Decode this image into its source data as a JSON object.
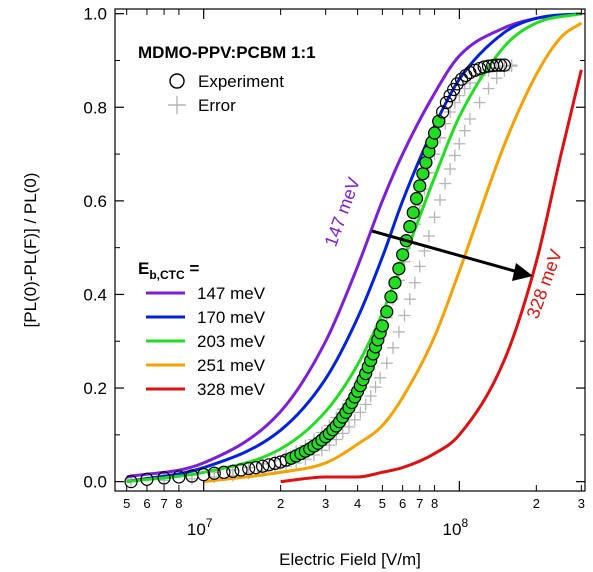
{
  "chart_data": {
    "type": "line",
    "xlabel": "Electric Field [V/m]",
    "ylabel": "[PL(0)-PL(F)] / PL(0)",
    "x_scale": "log",
    "xlim": [
      4500000,
      310000000
    ],
    "ylim": [
      -0.02,
      1.01
    ],
    "y_ticks": [
      "0.0",
      "0.2",
      "0.4",
      "0.6",
      "0.8",
      "1.0"
    ],
    "x_major_ticks": [
      {
        "value": 10000000,
        "base": "10",
        "exp": "7"
      },
      {
        "value": 100000000,
        "base": "10",
        "exp": "8"
      }
    ],
    "x_minor_labels": [
      {
        "value": 5000000,
        "label": "5"
      },
      {
        "value": 6000000,
        "label": "6"
      },
      {
        "value": 7000000,
        "label": "7"
      },
      {
        "value": 8000000,
        "label": "8"
      },
      {
        "value": 20000000,
        "label": "2"
      },
      {
        "value": 30000000,
        "label": "3"
      },
      {
        "value": 40000000,
        "label": "4"
      },
      {
        "value": 50000000,
        "label": "5"
      },
      {
        "value": 60000000,
        "label": "6"
      },
      {
        "value": 70000000,
        "label": "7"
      },
      {
        "value": 80000000,
        "label": "8"
      },
      {
        "value": 200000000,
        "label": "2"
      },
      {
        "value": 300000000,
        "label": "3"
      }
    ],
    "sample_label": "MDMO-PPV:PCBM 1:1",
    "legend_experiment": "Experiment",
    "legend_error": "Error",
    "eb_label_main": "E",
    "eb_label_sub": "b,CTC",
    "eb_label_eq": " =",
    "legend_placement": "top-left",
    "series": [
      {
        "name": "147 meV",
        "color": "#7b1fd8",
        "x": [
          5000000,
          10000000,
          20000000,
          30000000,
          40000000,
          50000000,
          60000000,
          80000000,
          100000000,
          150000000,
          200000000,
          300000000
        ],
        "y": [
          0.01,
          0.04,
          0.15,
          0.3,
          0.46,
          0.6,
          0.7,
          0.83,
          0.91,
          0.97,
          0.99,
          1.0
        ]
      },
      {
        "name": "170 meV",
        "color": "#0022dd",
        "x": [
          5000000,
          10000000,
          20000000,
          30000000,
          40000000,
          50000000,
          60000000,
          80000000,
          100000000,
          150000000,
          200000000,
          300000000
        ],
        "y": [
          0.0,
          0.03,
          0.11,
          0.22,
          0.35,
          0.48,
          0.6,
          0.76,
          0.86,
          0.96,
          0.99,
          1.0
        ]
      },
      {
        "name": "203 meV",
        "color": "#22dd22",
        "x": [
          5000000,
          10000000,
          20000000,
          30000000,
          40000000,
          50000000,
          60000000,
          80000000,
          100000000,
          150000000,
          200000000,
          300000000
        ],
        "y": [
          0.0,
          0.02,
          0.07,
          0.15,
          0.25,
          0.36,
          0.47,
          0.65,
          0.78,
          0.93,
          0.98,
          1.0
        ]
      },
      {
        "name": "251 meV",
        "color": "#f5a200",
        "x": [
          10000000,
          20000000,
          30000000,
          40000000,
          50000000,
          60000000,
          80000000,
          100000000,
          150000000,
          200000000,
          250000000,
          300000000
        ],
        "y": [
          0.0,
          0.02,
          0.04,
          0.08,
          0.12,
          0.18,
          0.31,
          0.45,
          0.72,
          0.87,
          0.95,
          0.98
        ]
      },
      {
        "name": "328 meV",
        "color": "#dd1111",
        "x": [
          20000000,
          30000000,
          40000000,
          50000000,
          60000000,
          80000000,
          100000000,
          150000000,
          200000000,
          250000000,
          300000000
        ],
        "y": [
          0.0,
          0.01,
          0.01,
          0.02,
          0.03,
          0.06,
          0.1,
          0.26,
          0.47,
          0.7,
          0.88
        ]
      }
    ],
    "experiment": {
      "x": [
        5200000,
        6000000,
        7000000,
        8000000,
        9000000,
        10000000,
        11000000,
        12000000,
        13000000,
        14000000,
        15000000,
        16000000,
        17000000,
        18000000,
        19000000,
        20000000,
        21000000,
        22000000,
        23000000,
        24000000,
        25000000,
        26000000,
        27000000,
        28000000,
        29000000,
        30000000,
        31000000,
        32000000,
        33000000,
        34000000,
        35000000,
        36000000,
        37000000,
        38000000,
        39000000,
        40000000,
        41000000,
        42000000,
        43000000,
        44000000,
        45000000,
        46000000,
        47000000,
        48000000,
        49000000,
        50000000,
        52000000,
        54000000,
        56000000,
        58000000,
        60000000,
        62000000,
        64000000,
        66000000,
        68000000,
        70000000,
        72000000,
        74000000,
        76000000,
        78000000,
        80000000,
        83000000,
        86000000,
        89000000,
        92000000,
        95000000,
        98000000,
        102000000,
        106000000,
        110000000,
        115000000,
        120000000,
        125000000,
        130000000,
        135000000,
        140000000,
        145000000,
        150000000
      ],
      "y": [
        0.0,
        0.005,
        0.008,
        0.01,
        0.012,
        0.015,
        0.018,
        0.02,
        0.022,
        0.025,
        0.028,
        0.03,
        0.033,
        0.036,
        0.039,
        0.042,
        0.046,
        0.05,
        0.055,
        0.06,
        0.065,
        0.07,
        0.076,
        0.082,
        0.089,
        0.096,
        0.103,
        0.111,
        0.119,
        0.128,
        0.138,
        0.148,
        0.158,
        0.169,
        0.181,
        0.193,
        0.205,
        0.218,
        0.231,
        0.245,
        0.259,
        0.273,
        0.288,
        0.303,
        0.318,
        0.333,
        0.363,
        0.395,
        0.425,
        0.455,
        0.485,
        0.515,
        0.545,
        0.575,
        0.605,
        0.632,
        0.658,
        0.682,
        0.705,
        0.725,
        0.745,
        0.77,
        0.79,
        0.81,
        0.825,
        0.838,
        0.85,
        0.86,
        0.868,
        0.874,
        0.879,
        0.883,
        0.886,
        0.888,
        0.889,
        0.89,
        0.89,
        0.89
      ]
    },
    "error": {
      "x": [
        5200000,
        7000000,
        9000000,
        11000000,
        13000000,
        15000000,
        17000000,
        19000000,
        21000000,
        23000000,
        25000000,
        27000000,
        29000000,
        31000000,
        33000000,
        35000000,
        37000000,
        39000000,
        41000000,
        43000000,
        45000000,
        47000000,
        49000000,
        52000000,
        55000000,
        58000000,
        61000000,
        64000000,
        67000000,
        70000000,
        73000000,
        76000000,
        80000000,
        84000000,
        88000000,
        92000000,
        96000000,
        100000000,
        105000000,
        110000000,
        120000000,
        130000000,
        140000000,
        150000000,
        160000000
      ],
      "y1": [
        0.005,
        0.009,
        0.014,
        0.02,
        0.025,
        0.03,
        0.038,
        0.046,
        0.055,
        0.065,
        0.077,
        0.09,
        0.105,
        0.12,
        0.137,
        0.155,
        0.174,
        0.195,
        0.217,
        0.24,
        0.263,
        0.287,
        0.312,
        0.35,
        0.39,
        0.43,
        0.47,
        0.51,
        0.55,
        0.59,
        0.625,
        0.66,
        0.7,
        0.735,
        0.765,
        0.79,
        0.81,
        0.825,
        0.84,
        0.852,
        0.868,
        0.878,
        0.884,
        0.888,
        0.89
      ],
      "y2": [
        0.0,
        0.003,
        0.006,
        0.01,
        0.013,
        0.018,
        0.022,
        0.027,
        0.033,
        0.04,
        0.048,
        0.057,
        0.067,
        0.078,
        0.09,
        0.103,
        0.117,
        0.132,
        0.148,
        0.165,
        0.183,
        0.202,
        0.222,
        0.253,
        0.286,
        0.32,
        0.355,
        0.39,
        0.425,
        0.46,
        0.493,
        0.525,
        0.565,
        0.602,
        0.637,
        0.668,
        0.697,
        0.722,
        0.75,
        0.775,
        0.81,
        0.84,
        0.862,
        0.878,
        0.888
      ]
    },
    "annotations": [
      {
        "text": "147 meV",
        "color": "#7b1fd8"
      },
      {
        "text": "328 meV",
        "color": "#dd1111"
      }
    ]
  }
}
